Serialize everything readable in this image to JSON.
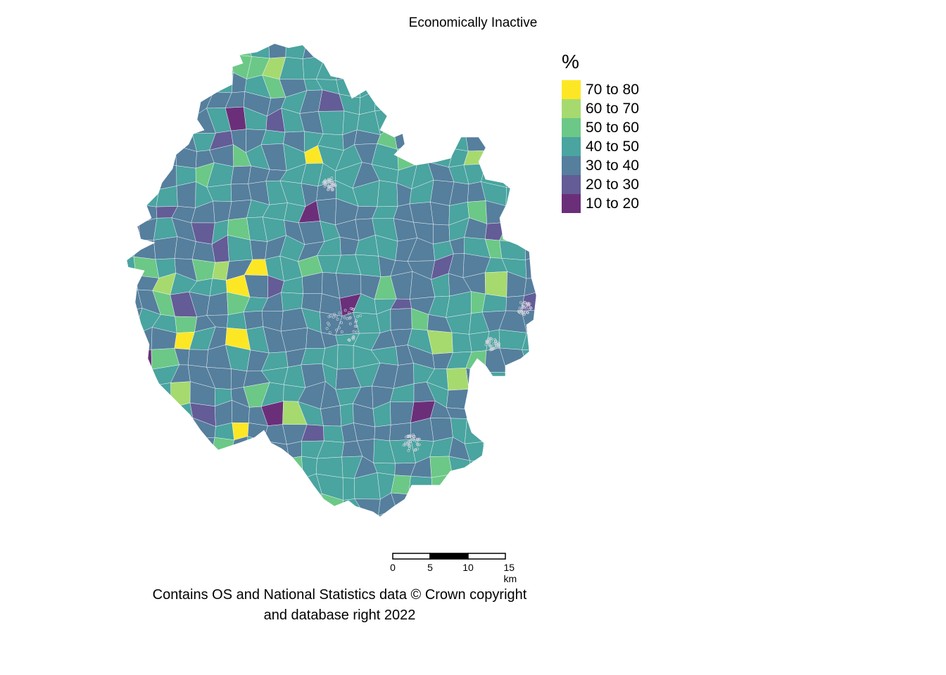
{
  "title": "Economically Inactive",
  "legend": {
    "title": "%",
    "items": [
      {
        "label": "70 to 80",
        "color": "#fde725"
      },
      {
        "label": "60 to 70",
        "color": "#a6da6f"
      },
      {
        "label": "50 to 60",
        "color": "#6cc887"
      },
      {
        "label": "40 to 50",
        "color": "#4aa4a0"
      },
      {
        "label": "30 to 40",
        "color": "#557f9d"
      },
      {
        "label": "20 to 30",
        "color": "#635c97"
      },
      {
        "label": "10 to 20",
        "color": "#6b2f7a"
      }
    ]
  },
  "scalebar": {
    "ticks": [
      "0",
      "5",
      "10",
      "15 km"
    ]
  },
  "caption": {
    "line1": "Contains OS and National Statistics data © Crown copyright",
    "line2": "and database right 2022"
  }
}
